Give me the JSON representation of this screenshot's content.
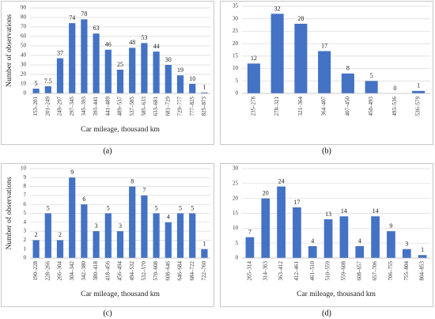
{
  "chart_data": [
    {
      "type": "bar",
      "caption": "(a)",
      "y_label": "Number of observations",
      "x_label": "Car mileage, thousand km",
      "color": "#4472c4",
      "grid": true,
      "categories": [
        "153–201",
        "201–249",
        "249–297",
        "297–345",
        "345–393",
        "393–441",
        "441–489",
        "489–537",
        "537–585",
        "585–633",
        "633–681",
        "681–729",
        "729–777",
        "777–825",
        "825–873"
      ],
      "values": [
        5,
        7.5,
        37,
        74,
        78,
        63,
        46,
        25,
        48,
        53,
        44,
        30,
        19,
        10,
        1
      ],
      "ylim": [
        0,
        90
      ],
      "yticks": [
        0,
        10,
        20,
        30,
        40,
        50,
        60,
        70,
        80,
        90
      ]
    },
    {
      "type": "bar",
      "caption": "(b)",
      "color": "#4472c4",
      "grid": true,
      "categories": [
        "235–278",
        "278–321",
        "321–364",
        "364–407",
        "407–450",
        "450–493",
        "493–536",
        "536–579"
      ],
      "values": [
        12,
        32,
        28,
        17,
        8,
        5,
        0,
        1
      ],
      "ylim": [
        0,
        35
      ],
      "yticks": [
        0,
        5,
        10,
        15,
        20,
        25,
        30,
        35
      ]
    },
    {
      "type": "bar",
      "caption": "(c)",
      "y_label": "Number of observations",
      "x_label": "Car mileage, thousand km",
      "color": "#4472c4",
      "grid": true,
      "categories": [
        "190–228",
        "228–266",
        "266–304",
        "304–342",
        "342–380",
        "380–418",
        "418–456",
        "456–494",
        "494–532",
        "532–570",
        "570–608",
        "608–646",
        "646–684",
        "684–722",
        "722–760"
      ],
      "values": [
        2,
        5,
        2,
        9,
        6,
        3,
        5,
        3,
        8,
        7,
        5,
        4,
        5,
        5,
        1
      ],
      "ylim": [
        0,
        10
      ],
      "yticks": [
        0,
        1,
        2,
        3,
        4,
        5,
        6,
        7,
        8,
        9,
        10
      ]
    },
    {
      "type": "bar",
      "caption": "(d)",
      "x_label": "Car mileage, thousand km",
      "color": "#4472c4",
      "grid": true,
      "categories": [
        "265–314",
        "314–363",
        "363–412",
        "412–461",
        "461–510",
        "510–559",
        "559–608",
        "608–657",
        "657–706",
        "706–755",
        "755–804",
        "804–853"
      ],
      "values": [
        7,
        20,
        24,
        17,
        4,
        13,
        14,
        4,
        14,
        9,
        3,
        1
      ],
      "ylim": [
        0,
        30
      ],
      "yticks": [
        0,
        5,
        10,
        15,
        20,
        25,
        30
      ]
    }
  ]
}
